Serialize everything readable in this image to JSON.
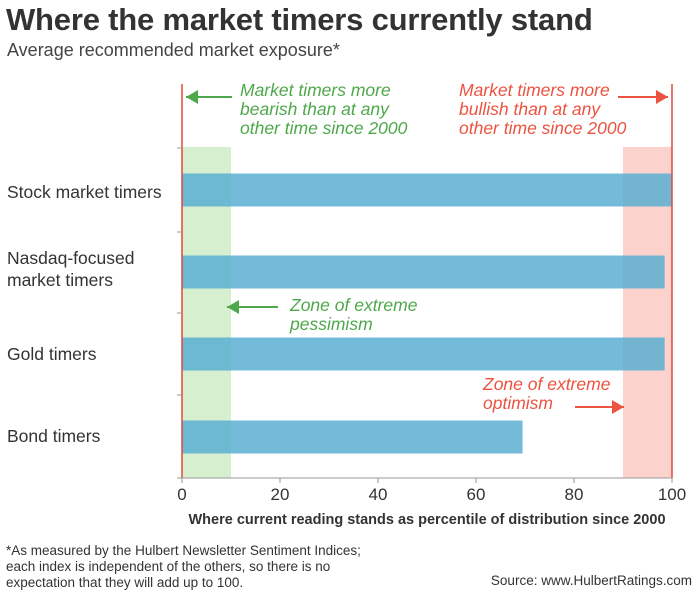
{
  "title": "Where the market timers currently stand",
  "subtitle": "Average recommended market exposure*",
  "footnote": [
    "*As measured by the Hulbert Newsletter Sentiment Indices;",
    "each index is independent of the others, so there is no",
    "expectation that they will add up to 100."
  ],
  "source": "Source: www.HulbertRatings.com",
  "colors": {
    "bar": "#5aafd1",
    "pessimism_zone": "#d5efcf",
    "optimism_zone": "#fcd2cd",
    "bearish_text": "#4ea84b",
    "bullish_text": "#ec5340",
    "axis_line": "#e2483a"
  },
  "chart_data": {
    "type": "bar",
    "orientation": "horizontal",
    "categories": [
      [
        "Stock market timers"
      ],
      [
        "Nasdaq-focused",
        "market timers"
      ],
      [
        "Gold timers"
      ],
      [
        "Bond timers"
      ]
    ],
    "values": [
      100,
      98.5,
      98.5,
      69.5
    ],
    "xlim": [
      0,
      100
    ],
    "xticks": [
      0,
      20,
      40,
      60,
      80,
      100
    ],
    "xlabel": "Where current reading stands as percentile of distribution since 2000",
    "zones": [
      {
        "name": "pessimism",
        "from": 0,
        "to": 10
      },
      {
        "name": "optimism",
        "from": 90,
        "to": 100
      }
    ],
    "annotations": {
      "bearish": [
        "Market timers more",
        "bearish than at any",
        "other time since 2000"
      ],
      "bullish": [
        "Market timers more",
        "bullish than at any",
        "other time since 2000"
      ],
      "pessimism": [
        "Zone of extreme",
        "pessimism"
      ],
      "optimism": [
        "Zone of extreme",
        "optimism"
      ]
    }
  }
}
